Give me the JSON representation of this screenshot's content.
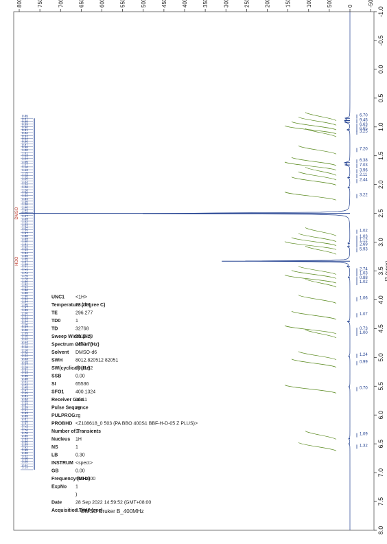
{
  "spectrum_header": {
    "instrument": "DMSO Bruker B_400MHz",
    "solvent_label": "DMSO",
    "water_label": "HDO"
  },
  "chart_data": {
    "type": "line",
    "title": "",
    "xlabel": "f1 (ppm)",
    "ylabel": "",
    "x_ticks": [
      "-1.0",
      "-0.5",
      "0.0",
      "0.5",
      "1.0",
      "1.5",
      "2.0",
      "2.5",
      "3.0",
      "3.5",
      "4.0",
      "4.5",
      "5.0",
      "5.5",
      "6.0",
      "6.5",
      "7.0",
      "7.5",
      "8.0"
    ],
    "xlim": [
      -1.0,
      8.0
    ],
    "xlim_display": [
      8.0,
      -1.0
    ],
    "y_ticks": [
      "-5000",
      "0",
      "5000",
      "10000",
      "15000",
      "20000",
      "25000",
      "30000",
      "35000",
      "40000",
      "45000",
      "50000",
      "55000",
      "60000",
      "65000",
      "70000",
      "75000",
      "80000"
    ],
    "ylim": [
      -5000,
      80000
    ],
    "series": [
      {
        "peaks": [
          {
            "ppm": 0.85,
            "intensity": 1100
          },
          {
            "ppm": 0.89,
            "intensity": 1300
          },
          {
            "ppm": 0.92,
            "intensity": 1000
          },
          {
            "ppm": 1.05,
            "intensity": 700
          },
          {
            "ppm": 1.62,
            "intensity": 1300
          },
          {
            "ppm": 1.66,
            "intensity": 1100
          },
          {
            "ppm": 1.88,
            "intensity": 600
          },
          {
            "ppm": 2.05,
            "intensity": 500
          },
          {
            "ppm": 2.5,
            "intensity": 80000
          },
          {
            "ppm": 3.02,
            "intensity": 500
          },
          {
            "ppm": 3.08,
            "intensity": 600
          },
          {
            "ppm": 3.33,
            "intensity": 31000
          },
          {
            "ppm": 3.42,
            "intensity": 600
          },
          {
            "ppm": 3.61,
            "intensity": 450
          },
          {
            "ppm": 4.38,
            "intensity": 650
          },
          {
            "ppm": 4.98,
            "intensity": 350
          },
          {
            "ppm": 5.51,
            "intensity": 300
          },
          {
            "ppm": 6.41,
            "intensity": 350
          },
          {
            "ppm": 6.5,
            "intensity": 300
          }
        ]
      }
    ],
    "peak_labels": [
      "0.86",
      "0.87",
      "0.88",
      "0.89",
      "0.90",
      "0.91",
      "0.92",
      "0.93",
      "0.94",
      "0.96",
      "0.97",
      "0.98",
      "1.00",
      "1.01",
      "1.03",
      "1.04",
      "1.06",
      "1.07",
      "1.10",
      "1.13",
      "1.15",
      "1.18",
      "1.20",
      "1.22",
      "1.24",
      "1.26",
      "1.28",
      "1.30",
      "1.32",
      "1.34",
      "1.36",
      "1.38",
      "1.40",
      "1.43",
      "1.46",
      "1.47",
      "1.49",
      "1.52",
      "1.53",
      "1.54",
      "1.55",
      "1.57",
      "1.58",
      "1.59",
      "1.60",
      "1.61",
      "1.62",
      "1.63",
      "1.64",
      "1.65",
      "1.66",
      "1.67",
      "1.69",
      "1.71",
      "1.72",
      "1.74",
      "1.76",
      "1.78",
      "1.80",
      "1.82",
      "1.84",
      "1.86",
      "1.88",
      "1.90",
      "1.92",
      "1.94",
      "1.96",
      "1.97",
      "1.99",
      "2.00",
      "2.01",
      "2.03",
      "2.04",
      "2.06",
      "2.07",
      "2.08",
      "2.09",
      "2.10",
      "2.12",
      "2.13",
      "2.14",
      "2.16",
      "2.18",
      "2.20",
      "2.22",
      "2.23",
      "2.25",
      "2.27",
      "2.29",
      "2.31",
      "2.33",
      "2.35",
      "2.38",
      "2.41",
      "2.43",
      "2.45",
      "2.47",
      "2.49",
      "2.51",
      "2.53",
      "2.55",
      "2.57",
      "2.59",
      "2.61",
      "2.63",
      "2.65",
      "2.67",
      "2.69",
      "2.71",
      "2.73",
      "2.76",
      "2.78",
      "2.80",
      "2.83",
      "2.86",
      "2.89",
      "2.92",
      "2.95",
      "2.98",
      "3.02",
      "3.05",
      "3.08",
      "3.11",
      "3.14"
    ],
    "integrals": [
      {
        "ppm": 0.82,
        "value": "6.70"
      },
      {
        "ppm": 0.9,
        "value": "9.45"
      },
      {
        "ppm": 0.98,
        "value": "6.63"
      },
      {
        "ppm": 1.05,
        "value": "6.65"
      },
      {
        "ppm": 1.1,
        "value": "3.25"
      },
      {
        "ppm": 1.4,
        "value": "7.20"
      },
      {
        "ppm": 1.6,
        "value": "6.38"
      },
      {
        "ppm": 1.68,
        "value": "7.03"
      },
      {
        "ppm": 1.77,
        "value": "3.96"
      },
      {
        "ppm": 1.85,
        "value": "2.11"
      },
      {
        "ppm": 1.94,
        "value": "2.44"
      },
      {
        "ppm": 2.2,
        "value": "3.22"
      },
      {
        "ppm": 2.82,
        "value": "1.02"
      },
      {
        "ppm": 2.92,
        "value": "1.03"
      },
      {
        "ppm": 2.99,
        "value": "1.12"
      },
      {
        "ppm": 3.06,
        "value": "2.69"
      },
      {
        "ppm": 3.14,
        "value": "5.93"
      },
      {
        "ppm": 3.49,
        "value": "2.74"
      },
      {
        "ppm": 3.56,
        "value": "1.03"
      },
      {
        "ppm": 3.64,
        "value": "0.88"
      },
      {
        "ppm": 3.71,
        "value": "1.02"
      },
      {
        "ppm": 3.99,
        "value": "1.06"
      },
      {
        "ppm": 4.27,
        "value": "1.07"
      },
      {
        "ppm": 4.52,
        "value": "0.73"
      },
      {
        "ppm": 4.59,
        "value": "1.00"
      },
      {
        "ppm": 4.97,
        "value": "1.24"
      },
      {
        "ppm": 5.1,
        "value": "0.99"
      },
      {
        "ppm": 5.55,
        "value": "0.70"
      },
      {
        "ppm": 6.35,
        "value": "1.09"
      },
      {
        "ppm": 6.55,
        "value": "1.32"
      }
    ]
  },
  "params": [
    {
      "name": "Acquisition Time (sec)",
      "value": "2.0447"
    },
    {
      "name": "Date",
      "value": "28 Sep 2022 14:59:52 (GMT+08:00"
    },
    {
      "name": "",
      "value": ")"
    },
    {
      "name": "ExpNo",
      "value": "1"
    },
    {
      "name": "Frequency (MHz)",
      "value": "400.1300"
    },
    {
      "name": "GB",
      "value": "0.00"
    },
    {
      "name": "INSTRUM",
      "value": "<spect>"
    },
    {
      "name": "LB",
      "value": "0.30"
    },
    {
      "name": "NS",
      "value": "1"
    },
    {
      "name": "Nucleus",
      "value": "1H"
    },
    {
      "name": "Number of Transients",
      "value": "1"
    },
    {
      "name": "PROBHD",
      "value": "<Z108618_0 503 (PA BBO 400S1 BBF-H-D-05 Z PLUS)>"
    },
    {
      "name": "PULPROG",
      "value": "zg"
    },
    {
      "name": "Pulse Sequence",
      "value": "zg"
    },
    {
      "name": "Receiver Gain",
      "value": "16.11"
    },
    {
      "name": "SFO1",
      "value": "400.1324"
    },
    {
      "name": "SI",
      "value": "65536"
    },
    {
      "name": "SSB",
      "value": "0.00"
    },
    {
      "name": "SW(cyclical) (Hz)",
      "value": "8012.82"
    },
    {
      "name": "SWH",
      "value": "8012.820512 82051"
    },
    {
      "name": "Solvent",
      "value": "DMSO-d6"
    },
    {
      "name": "Spectrum Offset (Hz)",
      "value": "2470.78"
    },
    {
      "name": "Sweep Width (Hz)",
      "value": "8012.70"
    },
    {
      "name": "TD",
      "value": "32768"
    },
    {
      "name": "TD0",
      "value": "1"
    },
    {
      "name": "TE",
      "value": "296.277"
    },
    {
      "name": "Temperature (degree C)",
      "value": "23.277"
    },
    {
      "name": "UNC1",
      "value": "<1H>"
    }
  ],
  "colors": {
    "spectrum": "#1f3e8f",
    "integral": "#5a8a1f",
    "peak_label": "#1f3e8f",
    "solvent_marker": "#c0392b",
    "text": "#222222"
  }
}
